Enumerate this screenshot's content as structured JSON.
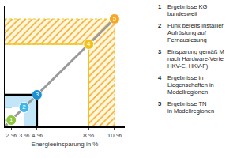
{
  "chart_data": {
    "type": "scatter",
    "xlabel": "Energieeinsparung in %",
    "series": [
      {
        "label": "1",
        "name": "Ergebnisse KG\nbundesweit",
        "color": "#8dc63f",
        "x": [
          2
        ],
        "values": [
          2
        ]
      },
      {
        "label": "2",
        "name": "Funk bereits installier\nAufrüstung auf\nFernauslesung",
        "color": "#41b6e6",
        "x": [
          3
        ],
        "values": [
          3
        ]
      },
      {
        "label": "3",
        "name": "Einsparung gemäß M\nnach Hardware-Verte\nHKV-E, HKV-F)",
        "color": "#1a8fd1",
        "x": [
          4
        ],
        "values": [
          4
        ]
      },
      {
        "label": "4",
        "name": "Ergebnisse in\nLiegenschaften in\nModellregionen",
        "color": "#f2c21b",
        "x": [
          8
        ],
        "values": [
          8
        ]
      },
      {
        "label": "5",
        "name": "Ergebnisse TN\nin Modellregionen",
        "color": "#f5a623",
        "x": [
          10
        ],
        "values": [
          10
        ]
      }
    ],
    "xlim": [
      1.5,
      10.8
    ],
    "ylim": [
      1.5,
      11
    ],
    "xticks": [
      {
        "value": 2,
        "label": "2 %"
      },
      {
        "value": 3,
        "label": "3 %"
      },
      {
        "value": 4,
        "label": "4 %"
      },
      {
        "value": 8,
        "label": "8 %"
      },
      {
        "value": 10,
        "label": "10 %"
      }
    ],
    "tick_labels": "x",
    "grid": false,
    "legend": "right"
  }
}
